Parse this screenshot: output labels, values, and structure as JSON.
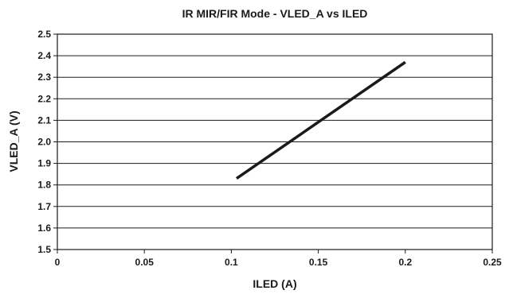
{
  "chart_data": {
    "type": "line",
    "title": "IR MIR/FIR Mode - VLED_A vs ILED",
    "xlabel": "ILED (A)",
    "ylabel": "VLED_A (V)",
    "xlim": [
      0,
      0.25
    ],
    "ylim": [
      1.5,
      2.5
    ],
    "x_ticks": [
      "0",
      "0.05",
      "0.1",
      "0.15",
      "0.2",
      "0.25"
    ],
    "y_ticks": [
      "1.5",
      "1.6",
      "1.7",
      "1.8",
      "1.9",
      "2.0",
      "2.1",
      "2.2",
      "2.3",
      "2.4",
      "2.5"
    ],
    "grid": "horizontal",
    "legend": "none",
    "series": [
      {
        "x": [
          0.103,
          0.2
        ],
        "y": [
          1.83,
          2.37
        ],
        "color": "#1a1a1a"
      }
    ]
  }
}
